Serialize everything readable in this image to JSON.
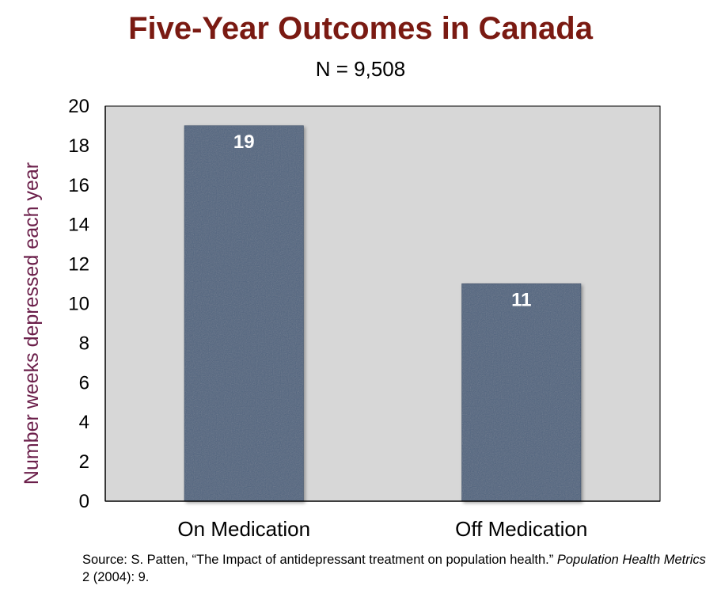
{
  "colors": {
    "title": "#7a1a12",
    "ylabel": "#6b1f4a",
    "bar": "#50637f",
    "bar_edge": "#3e4e66",
    "plot_bg": "#d7d7d7",
    "axis": "#000000"
  },
  "chart_data": {
    "type": "bar",
    "title": "Five-Year Outcomes in Canada",
    "subtitle": "N = 9,508",
    "ylabel": "Number weeks depressed each year",
    "xlabel": "",
    "categories": [
      "On Medication",
      "Off Medication"
    ],
    "values": [
      19,
      11
    ],
    "data_labels": [
      "19",
      "11"
    ],
    "ylim": [
      0,
      20
    ],
    "yticks": [
      0,
      2,
      4,
      6,
      8,
      10,
      12,
      14,
      16,
      18,
      20
    ],
    "ytick_labels": [
      "0",
      "2",
      "4",
      "6",
      "8",
      "10",
      "12",
      "14",
      "16",
      "18",
      "20"
    ],
    "grid": false,
    "legend": "none"
  },
  "source": {
    "prefix": "Source: S. Patten, “The Impact of antidepressant treatment on population health.” ",
    "journal": "Population Health Metrics",
    "suffix": " 2 (2004): 9."
  }
}
